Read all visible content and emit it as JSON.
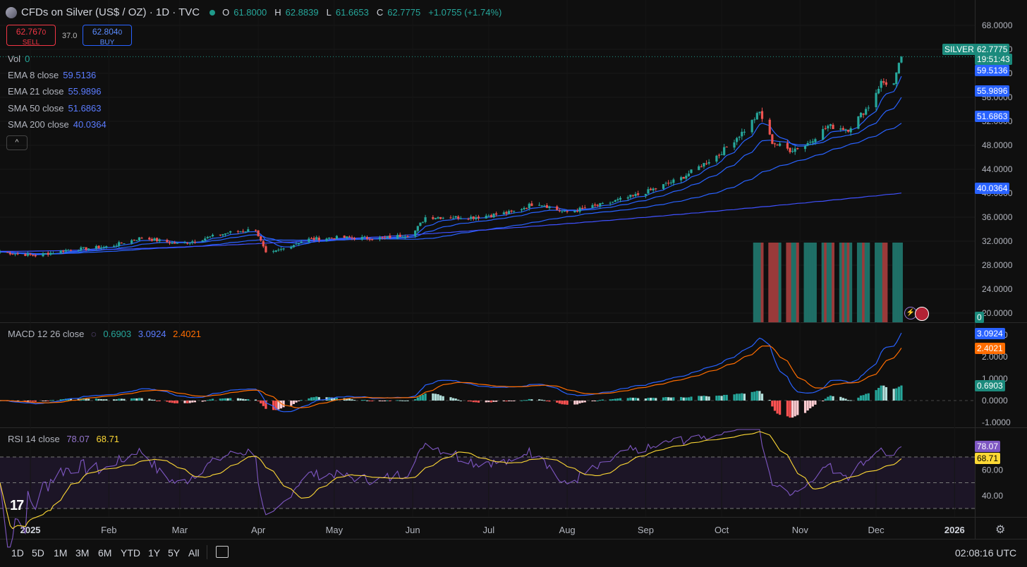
{
  "header": {
    "symbol": "CFDs on Silver (US$ / OZ) · 1D · TVC",
    "o_key": "O",
    "o_val": "61.8000",
    "h_key": "H",
    "h_val": "62.8839",
    "l_key": "L",
    "l_val": "61.6653",
    "c_key": "C",
    "c_val": "62.7775",
    "change": "+1.0755 (+1.74%)"
  },
  "trade": {
    "sell_price": "62.767",
    "sell_sup": "0",
    "sell_label": "SELL",
    "spread": "37.0",
    "buy_price": "62.804",
    "buy_sup": "0",
    "buy_label": "BUY"
  },
  "legends": {
    "vol_name": "Vol",
    "vol_val": "0",
    "ema8_name": "EMA 8 close",
    "ema8_val": "59.5136",
    "ema21_name": "EMA 21 close",
    "ema21_val": "55.9896",
    "sma50_name": "SMA 50 close",
    "sma50_val": "51.6863",
    "sma200_name": "SMA 200 close",
    "sma200_val": "40.0364",
    "macd_name": "MACD 12 26 close",
    "macd_hist": "0.6903",
    "macd_line": "3.0924",
    "macd_signal": "2.4021",
    "rsi_name": "RSI 14 close",
    "rsi_val": "78.07",
    "rsi_ma": "68.71",
    "collapse": "^"
  },
  "price_labels": {
    "symbol_tag": "SILVER",
    "last": "62.7775",
    "countdown": "19:51:43",
    "ema8": "59.5136",
    "ema21": "55.9896",
    "sma50": "51.6863",
    "sma200": "40.0364",
    "vol": "0",
    "macd_line": "3.0924",
    "macd_signal": "2.4021",
    "macd_hist": "0.6903",
    "rsi": "78.07",
    "rsi_ma": "68.71"
  },
  "colors": {
    "up": "#26a69a",
    "down": "#ef5350",
    "ema8": "#2962ff",
    "ema21": "#2962ff",
    "sma50": "#2962ff",
    "sma200": "#3f51ff",
    "macd": "#2962ff",
    "signal": "#ff6d00",
    "rsi": "#7e57c2",
    "rsi_ma": "#fdd835",
    "bg": "#0f0f0f"
  },
  "timeframes": [
    "1D",
    "5D",
    "1M",
    "3M",
    "6M",
    "YTD",
    "1Y",
    "5Y",
    "All"
  ],
  "clock": "02:08:16 UTC",
  "icons": {
    "settings": "gear-icon",
    "calendar": "calendar-icon",
    "logo": "tradingview-logo-icon"
  },
  "tv_logo": "17",
  "chart_data": [
    {
      "type": "candlestick",
      "title": "CFDs on Silver (US$ / OZ) · 1D · TVC",
      "x_range": [
        "2024-12-20",
        "2026-01-14"
      ],
      "ylim": [
        18,
        70
      ],
      "y_ticks": [
        20,
        24,
        28,
        32,
        36,
        40,
        44,
        48,
        52,
        56,
        60,
        64,
        68
      ],
      "x_ticks": [
        "2025",
        "Feb",
        "Mar",
        "Apr",
        "May",
        "Jun",
        "Jul",
        "Aug",
        "Sep",
        "Oct",
        "Nov",
        "Dec",
        "2026"
      ],
      "x_tick_dates": [
        "2025-01-01",
        "2025-02-01",
        "2025-03-01",
        "2025-04-01",
        "2025-05-01",
        "2025-06-01",
        "2025-07-01",
        "2025-08-01",
        "2025-09-01",
        "2025-10-01",
        "2025-11-01",
        "2025-12-01",
        "2026-01-01"
      ],
      "close_anchors": [
        [
          "2024-12-20",
          30.2
        ],
        [
          "2025-01-03",
          29.6
        ],
        [
          "2025-01-15",
          30.5
        ],
        [
          "2025-02-01",
          31.1
        ],
        [
          "2025-02-14",
          32.6
        ],
        [
          "2025-03-01",
          31.5
        ],
        [
          "2025-03-20",
          33.4
        ],
        [
          "2025-03-31",
          34.0
        ],
        [
          "2025-04-04",
          29.9
        ],
        [
          "2025-04-07",
          30.1
        ],
        [
          "2025-04-20",
          32.3
        ],
        [
          "2025-05-01",
          32.6
        ],
        [
          "2025-05-20",
          32.5
        ],
        [
          "2025-06-01",
          33.2
        ],
        [
          "2025-06-06",
          36.0
        ],
        [
          "2025-06-25",
          36.0
        ],
        [
          "2025-07-10",
          36.8
        ],
        [
          "2025-07-20",
          38.5
        ],
        [
          "2025-07-31",
          36.8
        ],
        [
          "2025-08-15",
          38.1
        ],
        [
          "2025-08-31",
          40.0
        ],
        [
          "2025-09-15",
          42.5
        ],
        [
          "2025-09-30",
          46.5
        ],
        [
          "2025-10-10",
          50.5
        ],
        [
          "2025-10-16",
          53.5
        ],
        [
          "2025-10-21",
          48.5
        ],
        [
          "2025-10-28",
          47.2
        ],
        [
          "2025-11-03",
          48.0
        ],
        [
          "2025-11-12",
          51.2
        ],
        [
          "2025-11-20",
          50.7
        ],
        [
          "2025-11-28",
          54.5
        ],
        [
          "2025-12-03",
          58.5
        ],
        [
          "2025-12-08",
          58.2
        ],
        [
          "2025-12-11",
          62.78
        ]
      ],
      "last": {
        "open": 61.8,
        "high": 62.8839,
        "low": 61.6653,
        "close": 62.7775
      },
      "series": [
        {
          "name": "EMA 8 close",
          "last": 59.5136
        },
        {
          "name": "EMA 21 close",
          "last": 55.9896
        },
        {
          "name": "SMA 50 close",
          "last": 51.6863
        },
        {
          "name": "SMA 200 close",
          "last": 40.0364
        }
      ],
      "volume_note": "Volume bars shown only from mid-October to the last bar"
    },
    {
      "type": "line",
      "name": "MACD 12 26 close",
      "y_ticks": [
        -1.0,
        0.0,
        1.0,
        2.0,
        3.0
      ],
      "last": {
        "macd": 3.0924,
        "signal": 2.4021,
        "histogram": 0.6903
      }
    },
    {
      "type": "line",
      "name": "RSI 14 close",
      "y_ticks": [
        40.0,
        60.0
      ],
      "bands": [
        30,
        50,
        70
      ],
      "last": {
        "rsi": 78.07,
        "rsi_ma": 68.71
      }
    }
  ]
}
